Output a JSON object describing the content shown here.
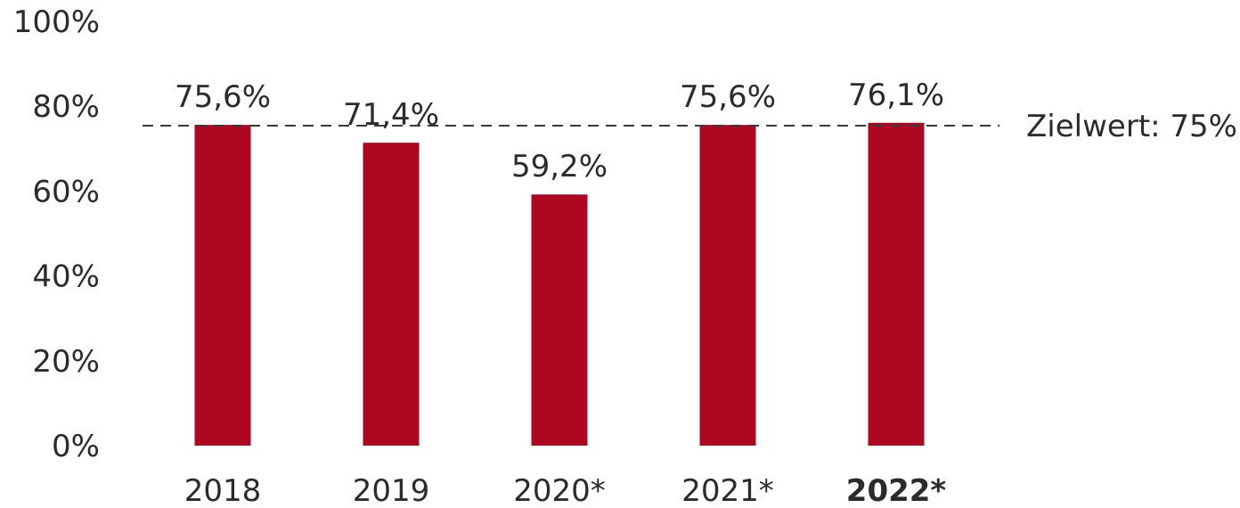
{
  "chart_data": {
    "type": "bar",
    "categories": [
      "2018",
      "2019",
      "2020*",
      "2021*",
      "2022*"
    ],
    "highlighted_category": "2022*",
    "values": [
      75.6,
      71.4,
      59.2,
      75.6,
      76.1
    ],
    "value_labels": [
      "75,6%",
      "71,4%",
      "59,2%",
      "75,6%",
      "76,1%"
    ],
    "ylim": [
      0,
      100
    ],
    "y_ticks": [
      0,
      20,
      40,
      60,
      80,
      100
    ],
    "y_tick_labels": [
      "0%",
      "20%",
      "40%",
      "60%",
      "80%",
      "100%"
    ],
    "target": {
      "value": 75,
      "label": "Zielwert: 75%",
      "style": "dashed"
    },
    "grid": false,
    "legend": "none",
    "colors": {
      "bar": "#ad0721",
      "text": "#2b2b2b",
      "target_line": "#3a3a3a"
    }
  }
}
